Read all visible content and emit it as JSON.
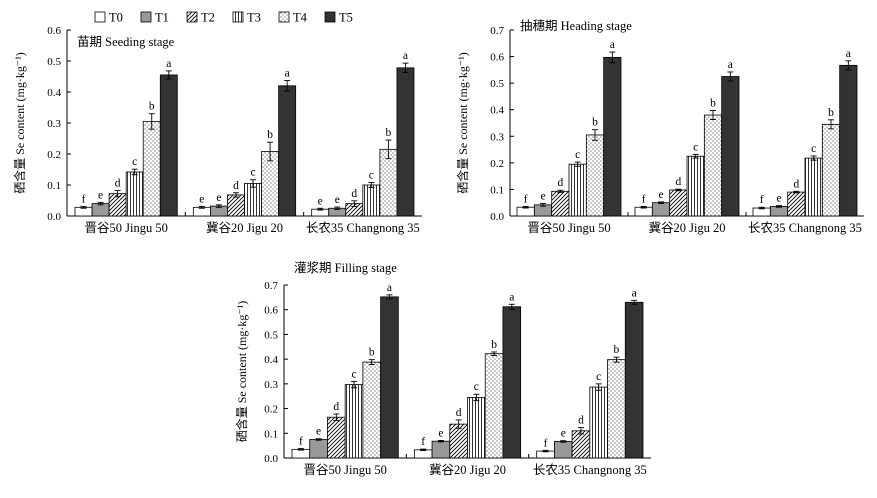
{
  "chart_data": {
    "type": "bar",
    "legend": {
      "placement": "top-left",
      "entries": [
        "T0",
        "T1",
        "T2",
        "T3",
        "T4",
        "T5"
      ]
    },
    "series_styles": [
      {
        "name": "T0",
        "fill": "#ffffff",
        "pattern": "none"
      },
      {
        "name": "T1",
        "fill": "#999999",
        "pattern": "none"
      },
      {
        "name": "T2",
        "fill": "#ffffff",
        "pattern": "diagonal-hatch"
      },
      {
        "name": "T3",
        "fill": "#ffffff",
        "pattern": "vertical-lines"
      },
      {
        "name": "T4",
        "fill": "#ffffff",
        "pattern": "dots"
      },
      {
        "name": "T5",
        "fill": "#333333",
        "pattern": "none"
      }
    ],
    "colors": {
      "axis": "#000000",
      "light_gray": "#999999",
      "dark": "#333333"
    },
    "panels": [
      {
        "title": "苗期 Seeding stage",
        "ylabel": "硒含量 Se content (mg·kg⁻¹)",
        "ylim": [
          0,
          0.6
        ],
        "yticks": [
          "0.0",
          "0.1",
          "0.2",
          "0.3",
          "0.4",
          "0.5",
          "0.6"
        ],
        "categories": [
          "晋谷50 Jingu 50",
          "冀谷20 Jigu 20",
          "长农35 Changnong 35"
        ],
        "values": [
          [
            0.028,
            0.04,
            0.072,
            0.142,
            0.305,
            0.455
          ],
          [
            0.028,
            0.032,
            0.068,
            0.105,
            0.208,
            0.42
          ],
          [
            0.022,
            0.025,
            0.04,
            0.1,
            0.215,
            0.478
          ]
        ],
        "errors": [
          [
            0.003,
            0.004,
            0.01,
            0.009,
            0.025,
            0.013
          ],
          [
            0.003,
            0.004,
            0.007,
            0.012,
            0.03,
            0.017
          ],
          [
            0.003,
            0.004,
            0.009,
            0.008,
            0.03,
            0.015
          ]
        ],
        "letters": [
          [
            "f",
            "e",
            "d",
            "c",
            "b",
            "a"
          ],
          [
            "e",
            "e",
            "d",
            "c",
            "b",
            "a"
          ],
          [
            "e",
            "e",
            "d",
            "c",
            "b",
            "a"
          ]
        ]
      },
      {
        "title": "抽穗期 Heading stage",
        "ylabel": "硒含量 Se content (mg·kg⁻¹)",
        "ylim": [
          0,
          0.7
        ],
        "yticks": [
          "0.0",
          "0.1",
          "0.2",
          "0.3",
          "0.4",
          "0.5",
          "0.6",
          "0.7"
        ],
        "categories": [
          "晋谷50 Jingu 50",
          "冀谷20 Jigu 20",
          "长农35 Changnong 35"
        ],
        "values": [
          [
            0.033,
            0.042,
            0.093,
            0.195,
            0.305,
            0.597
          ],
          [
            0.033,
            0.05,
            0.098,
            0.225,
            0.38,
            0.525
          ],
          [
            0.03,
            0.036,
            0.09,
            0.218,
            0.345,
            0.567
          ]
        ],
        "errors": [
          [
            0.003,
            0.005,
            0.004,
            0.008,
            0.02,
            0.02
          ],
          [
            0.003,
            0.003,
            0.003,
            0.007,
            0.017,
            0.017
          ],
          [
            0.003,
            0.003,
            0.003,
            0.008,
            0.017,
            0.017
          ]
        ],
        "letters": [
          [
            "f",
            "e",
            "d",
            "c",
            "b",
            "a"
          ],
          [
            "f",
            "e",
            "d",
            "c",
            "b",
            "a"
          ],
          [
            "f",
            "e",
            "d",
            "c",
            "b",
            "a"
          ]
        ]
      },
      {
        "title": "灌浆期 Filling stage",
        "ylabel": "硒含量 Se content (mg·kg⁻¹)",
        "ylim": [
          0,
          0.7
        ],
        "yticks": [
          "0.0",
          "0.1",
          "0.2",
          "0.3",
          "0.4",
          "0.5",
          "0.6",
          "0.7"
        ],
        "categories": [
          "晋谷50 Jingu 50",
          "冀谷20 Jigu 20",
          "长农35 Changnong 35"
        ],
        "values": [
          [
            0.035,
            0.075,
            0.165,
            0.297,
            0.388,
            0.652
          ],
          [
            0.033,
            0.068,
            0.137,
            0.245,
            0.422,
            0.612
          ],
          [
            0.028,
            0.067,
            0.11,
            0.287,
            0.398,
            0.63
          ]
        ],
        "errors": [
          [
            0.003,
            0.003,
            0.013,
            0.013,
            0.01,
            0.008
          ],
          [
            0.003,
            0.003,
            0.017,
            0.013,
            0.007,
            0.01
          ],
          [
            0.003,
            0.003,
            0.013,
            0.013,
            0.01,
            0.008
          ]
        ],
        "letters": [
          [
            "f",
            "e",
            "d",
            "c",
            "b",
            "a"
          ],
          [
            "f",
            "e",
            "d",
            "c",
            "b",
            "a"
          ],
          [
            "f",
            "e",
            "d",
            "c",
            "b",
            "a"
          ]
        ]
      }
    ]
  }
}
